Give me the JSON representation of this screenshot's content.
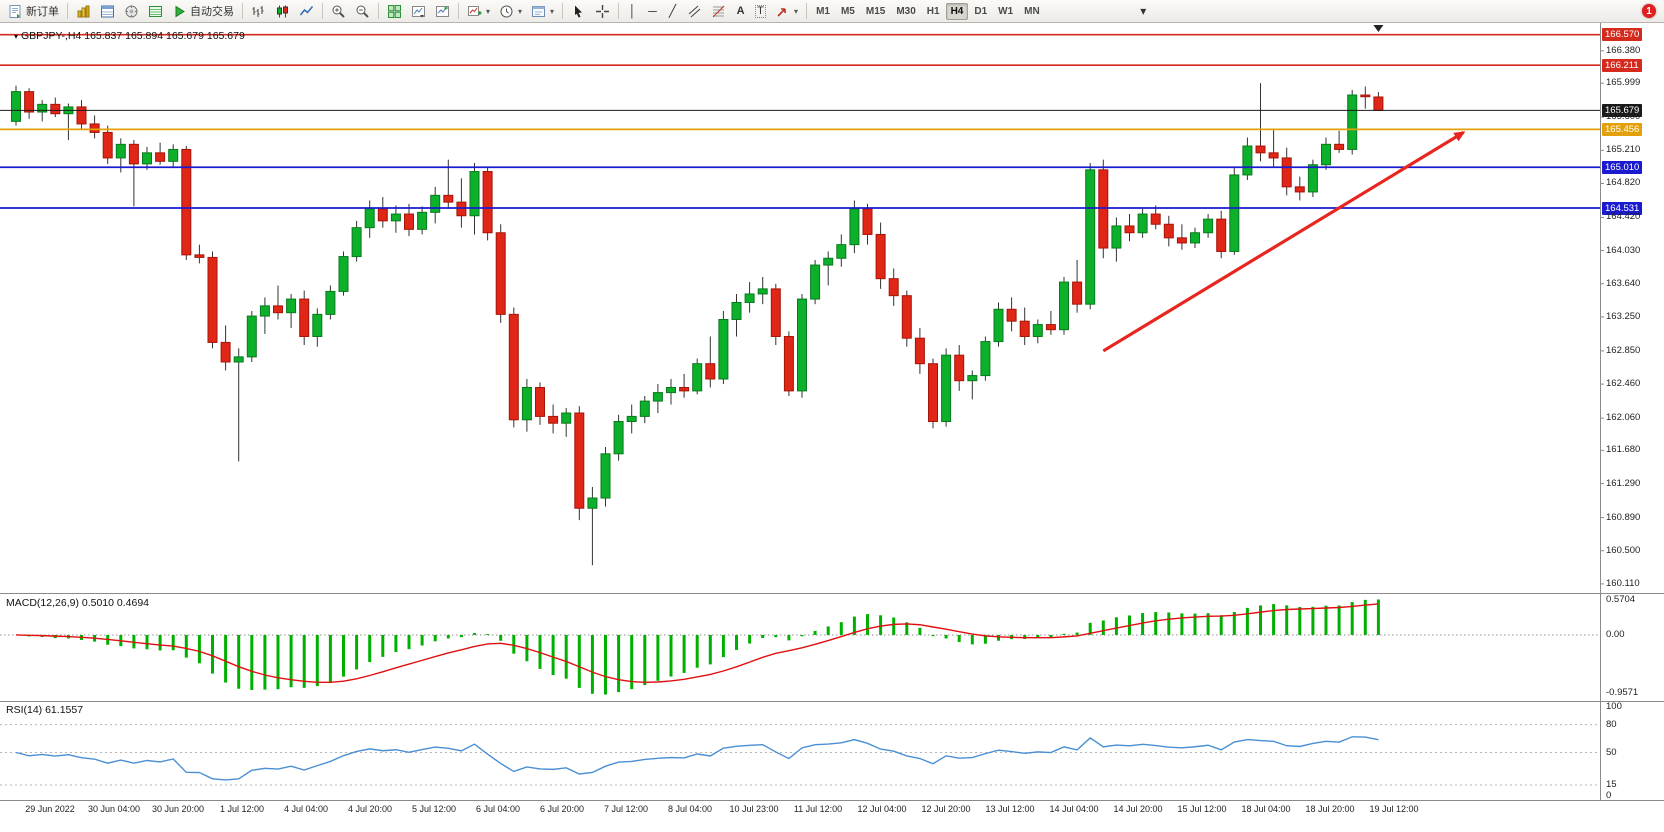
{
  "toolbar": {
    "new_order": "新订单",
    "autotrading": "自动交易",
    "timeframes": [
      "M1",
      "M5",
      "M15",
      "M30",
      "H1",
      "H4",
      "D1",
      "W1",
      "MN"
    ],
    "active_timeframe": "H4",
    "notification_count": "1"
  },
  "chart": {
    "symbol_label": "GBPJPY-,H4 165.837 165.894 165.679 165.679",
    "macd_label": "MACD(12,26,9) 0.5010 0.4694",
    "rsi_label": "RSI(14) 61.1557"
  },
  "chart_data": {
    "type": "candlestick",
    "symbol": "GBPJPY",
    "timeframe": "H4",
    "ohlc": [
      [
        165.55,
        165.97,
        165.5,
        165.9
      ],
      [
        165.9,
        165.94,
        165.58,
        165.66
      ],
      [
        165.66,
        165.8,
        165.55,
        165.75
      ],
      [
        165.75,
        165.83,
        165.6,
        165.64
      ],
      [
        165.64,
        165.76,
        165.33,
        165.72
      ],
      [
        165.72,
        165.8,
        165.45,
        165.52
      ],
      [
        165.52,
        165.62,
        165.35,
        165.42
      ],
      [
        165.42,
        165.5,
        165.05,
        165.12
      ],
      [
        165.12,
        165.35,
        164.95,
        165.28
      ],
      [
        165.28,
        165.33,
        164.55,
        165.05
      ],
      [
        165.05,
        165.25,
        164.98,
        165.18
      ],
      [
        165.18,
        165.3,
        165.04,
        165.08
      ],
      [
        165.08,
        165.28,
        165.0,
        165.22
      ],
      [
        165.22,
        165.26,
        163.92,
        163.98
      ],
      [
        163.98,
        164.1,
        163.88,
        163.95
      ],
      [
        163.95,
        164.02,
        162.88,
        162.95
      ],
      [
        162.95,
        163.15,
        162.62,
        162.72
      ],
      [
        162.72,
        162.88,
        161.55,
        162.78
      ],
      [
        162.78,
        163.32,
        162.72,
        163.26
      ],
      [
        163.26,
        163.48,
        163.05,
        163.38
      ],
      [
        163.38,
        163.62,
        163.22,
        163.3
      ],
      [
        163.3,
        163.52,
        163.12,
        163.46
      ],
      [
        163.46,
        163.56,
        162.92,
        163.02
      ],
      [
        163.02,
        163.35,
        162.9,
        163.28
      ],
      [
        163.28,
        163.62,
        163.22,
        163.55
      ],
      [
        163.55,
        164.02,
        163.5,
        163.96
      ],
      [
        163.96,
        164.38,
        163.9,
        164.3
      ],
      [
        164.3,
        164.62,
        164.18,
        164.52
      ],
      [
        164.52,
        164.66,
        164.3,
        164.38
      ],
      [
        164.38,
        164.56,
        164.24,
        164.46
      ],
      [
        164.46,
        164.58,
        164.2,
        164.28
      ],
      [
        164.28,
        164.55,
        164.22,
        164.48
      ],
      [
        164.48,
        164.78,
        164.35,
        164.68
      ],
      [
        164.68,
        165.1,
        164.52,
        164.6
      ],
      [
        164.6,
        164.88,
        164.3,
        164.44
      ],
      [
        164.44,
        165.06,
        164.22,
        164.96
      ],
      [
        164.96,
        165.02,
        164.15,
        164.24
      ],
      [
        164.24,
        164.34,
        163.18,
        163.28
      ],
      [
        163.28,
        163.36,
        161.95,
        162.04
      ],
      [
        162.04,
        162.52,
        161.9,
        162.42
      ],
      [
        162.42,
        162.48,
        161.98,
        162.08
      ],
      [
        162.08,
        162.22,
        161.88,
        162.0
      ],
      [
        162.0,
        162.18,
        161.84,
        162.12
      ],
      [
        162.12,
        162.2,
        160.86,
        161.0
      ],
      [
        161.0,
        161.25,
        160.33,
        161.12
      ],
      [
        161.12,
        161.72,
        161.02,
        161.64
      ],
      [
        161.64,
        162.1,
        161.56,
        162.02
      ],
      [
        162.02,
        162.22,
        161.88,
        162.08
      ],
      [
        162.08,
        162.32,
        162.0,
        162.26
      ],
      [
        162.26,
        162.46,
        162.12,
        162.36
      ],
      [
        162.36,
        162.52,
        162.22,
        162.42
      ],
      [
        162.42,
        162.58,
        162.3,
        162.38
      ],
      [
        162.38,
        162.76,
        162.34,
        162.7
      ],
      [
        162.7,
        163.02,
        162.42,
        162.52
      ],
      [
        162.52,
        163.32,
        162.46,
        163.22
      ],
      [
        163.22,
        163.52,
        163.02,
        163.42
      ],
      [
        163.42,
        163.66,
        163.3,
        163.52
      ],
      [
        163.52,
        163.72,
        163.4,
        163.58
      ],
      [
        163.58,
        163.64,
        162.92,
        163.02
      ],
      [
        163.02,
        163.08,
        162.32,
        162.38
      ],
      [
        162.38,
        163.52,
        162.3,
        163.46
      ],
      [
        163.46,
        163.92,
        163.4,
        163.86
      ],
      [
        163.86,
        164.02,
        163.62,
        163.94
      ],
      [
        163.94,
        164.22,
        163.84,
        164.1
      ],
      [
        164.1,
        164.62,
        164.0,
        164.52
      ],
      [
        164.52,
        164.58,
        164.1,
        164.22
      ],
      [
        164.22,
        164.36,
        163.58,
        163.7
      ],
      [
        163.7,
        163.82,
        163.38,
        163.5
      ],
      [
        163.5,
        163.56,
        162.9,
        163.0
      ],
      [
        163.0,
        163.12,
        162.58,
        162.7
      ],
      [
        162.7,
        162.76,
        161.94,
        162.02
      ],
      [
        162.02,
        162.88,
        161.96,
        162.8
      ],
      [
        162.8,
        162.92,
        162.38,
        162.5
      ],
      [
        162.5,
        162.62,
        162.28,
        162.56
      ],
      [
        162.56,
        163.02,
        162.5,
        162.96
      ],
      [
        162.96,
        163.42,
        162.9,
        163.34
      ],
      [
        163.34,
        163.48,
        163.08,
        163.2
      ],
      [
        163.2,
        163.36,
        162.92,
        163.02
      ],
      [
        163.02,
        163.22,
        162.94,
        163.16
      ],
      [
        163.16,
        163.32,
        163.04,
        163.1
      ],
      [
        163.1,
        163.72,
        163.04,
        163.66
      ],
      [
        163.66,
        163.92,
        163.3,
        163.4
      ],
      [
        163.4,
        165.06,
        163.34,
        164.98
      ],
      [
        164.98,
        165.1,
        163.94,
        164.06
      ],
      [
        164.06,
        164.42,
        163.9,
        164.32
      ],
      [
        164.32,
        164.46,
        164.14,
        164.24
      ],
      [
        164.24,
        164.52,
        164.18,
        164.46
      ],
      [
        164.46,
        164.56,
        164.28,
        164.34
      ],
      [
        164.34,
        164.44,
        164.08,
        164.18
      ],
      [
        164.18,
        164.34,
        164.04,
        164.12
      ],
      [
        164.12,
        164.3,
        164.06,
        164.24
      ],
      [
        164.24,
        164.46,
        164.18,
        164.4
      ],
      [
        164.4,
        164.5,
        163.94,
        164.02
      ],
      [
        164.02,
        165.02,
        163.98,
        164.92
      ],
      [
        164.92,
        165.36,
        164.86,
        165.26
      ],
      [
        165.26,
        166.0,
        165.08,
        165.18
      ],
      [
        165.18,
        165.46,
        165.02,
        165.12
      ],
      [
        165.12,
        165.24,
        164.68,
        164.78
      ],
      [
        164.78,
        164.9,
        164.62,
        164.72
      ],
      [
        164.72,
        165.1,
        164.66,
        165.04
      ],
      [
        165.04,
        165.36,
        164.98,
        165.28
      ],
      [
        165.28,
        165.44,
        165.18,
        165.22
      ],
      [
        165.22,
        165.92,
        165.16,
        165.86
      ],
      [
        165.86,
        165.96,
        165.7,
        165.84
      ],
      [
        165.837,
        165.894,
        165.679,
        165.679
      ]
    ],
    "price_axis": {
      "ticks": [
        "166.380",
        "165.999",
        "165.600",
        "165.210",
        "164.820",
        "164.420",
        "164.030",
        "163.640",
        "163.250",
        "162.850",
        "162.460",
        "162.060",
        "161.680",
        "161.290",
        "160.890",
        "160.500",
        "160.110"
      ],
      "tick_values": [
        166.38,
        165.999,
        165.6,
        165.21,
        164.82,
        164.42,
        164.03,
        163.64,
        163.25,
        162.85,
        162.46,
        162.06,
        161.68,
        161.29,
        160.89,
        160.5,
        160.11
      ],
      "levels": [
        {
          "name": "resistance-line-1",
          "price": 166.57,
          "label": "166.570",
          "color": "#d52b1e",
          "width": 1.6
        },
        {
          "name": "resistance-line-2",
          "price": 166.211,
          "label": "166.211",
          "color": "#d52b1e",
          "width": 1.6
        },
        {
          "name": "support-line-1",
          "price": 165.01,
          "label": "165.010",
          "color": "#1a1ad0",
          "width": 1.8
        },
        {
          "name": "support-line-2",
          "price": 164.531,
          "label": "164.531",
          "color": "#1a1ad0",
          "width": 1.8
        },
        {
          "name": "orange-level-line",
          "price": 165.456,
          "label": "165.456",
          "color": "#e3a008",
          "width": 1.8
        },
        {
          "name": "bid-price-line",
          "price": 165.679,
          "label": "165.679",
          "color": "#1a1a1a",
          "width": 1.0
        }
      ]
    },
    "time_axis": [
      "29 Jun 2022",
      "30 Jun 04:00",
      "30 Jun 20:00",
      "1 Jul 12:00",
      "4 Jul 04:00",
      "4 Jul 20:00",
      "5 Jul 12:00",
      "6 Jul 04:00",
      "6 Jul 20:00",
      "7 Jul 12:00",
      "8 Jul 04:00",
      "10 Jul 23:00",
      "11 Jul 12:00",
      "12 Jul 04:00",
      "12 Jul 20:00",
      "13 Jul 12:00",
      "14 Jul 04:00",
      "14 Jul 20:00",
      "15 Jul 12:00",
      "18 Jul 04:00",
      "18 Jul 20:00",
      "19 Jul 12:00"
    ],
    "macd": {
      "params": "12,26,9",
      "main_value": 0.501,
      "signal_value": 0.4694,
      "scale": [
        "0.5704",
        "0.00",
        "-0.9571"
      ],
      "scale_max": 0.5704,
      "scale_min": -0.9571,
      "histogram_color": "#00b000",
      "signal_color": "#e01010"
    },
    "rsi": {
      "period": 14,
      "value": 61.1557,
      "scale": [
        "100",
        "80",
        "50",
        "15",
        "0"
      ],
      "levels": [
        80,
        50,
        15
      ],
      "line_color": "#4a8fd4"
    },
    "colors": {
      "candle_up": "#0db02b",
      "candle_up_border": "#087a1d",
      "candle_down": "#df2617",
      "candle_down_border": "#a61508",
      "wick": "#333333",
      "background": "#ffffff"
    },
    "trend_arrow": {
      "from": {
        "bar": 83,
        "price": 162.85
      },
      "to": {
        "bar": 110.5,
        "price": 165.42
      },
      "color": "#e8251f"
    }
  }
}
